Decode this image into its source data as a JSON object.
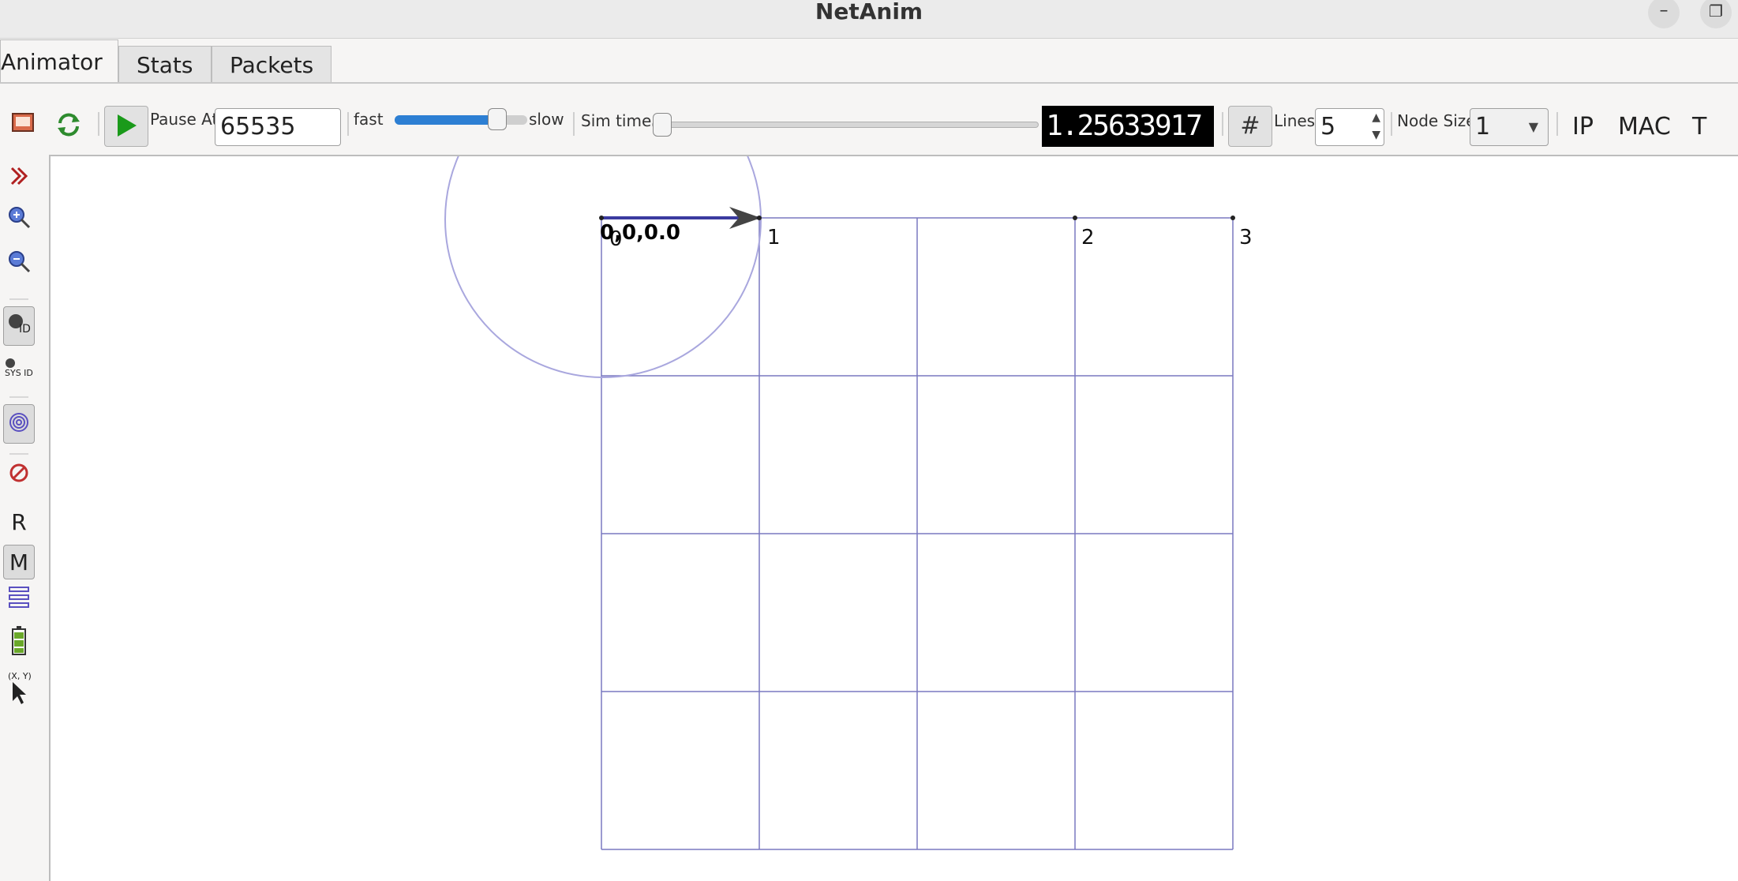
{
  "window": {
    "title": "NetAnim",
    "minimize_glyph": "–",
    "restore_glyph": "❐"
  },
  "tabs": [
    {
      "label": "Animator",
      "active": true
    },
    {
      "label": "Stats",
      "active": false
    },
    {
      "label": "Packets",
      "active": false
    }
  ],
  "toolbar": {
    "pause_at_label": "Pause At",
    "pause_at_value": "65535",
    "fast_label": "fast",
    "slow_label": "slow",
    "speed_slider_fraction": 0.82,
    "sim_time_label": "Sim time",
    "sim_time_fraction": 0.0,
    "sim_time_value": "1.25633917",
    "grid_glyph": "#",
    "lines_label": "Lines",
    "lines_value": "5",
    "node_size_label": "Node Size",
    "node_size_value": "1",
    "ip_label": "IP",
    "mac_label": "MAC",
    "t_label": "T"
  },
  "left_toolbar": {
    "r_label": "R",
    "m_label": "M",
    "sysid_label": "SYS ID",
    "id_label": "ID",
    "xy_label": "(X, Y)"
  },
  "canvas": {
    "nodes": [
      {
        "id": "0"
      },
      {
        "id": "1"
      },
      {
        "id": "2"
      },
      {
        "id": "3"
      }
    ],
    "coordinate_readout": "0,0,0.0",
    "grid_lines": 5
  },
  "colors": {
    "grid": "#7a78c0",
    "packet_arrow": "#3b3ba0",
    "play_green": "#1a9a1a",
    "slider_blue": "#2d7fd3"
  }
}
